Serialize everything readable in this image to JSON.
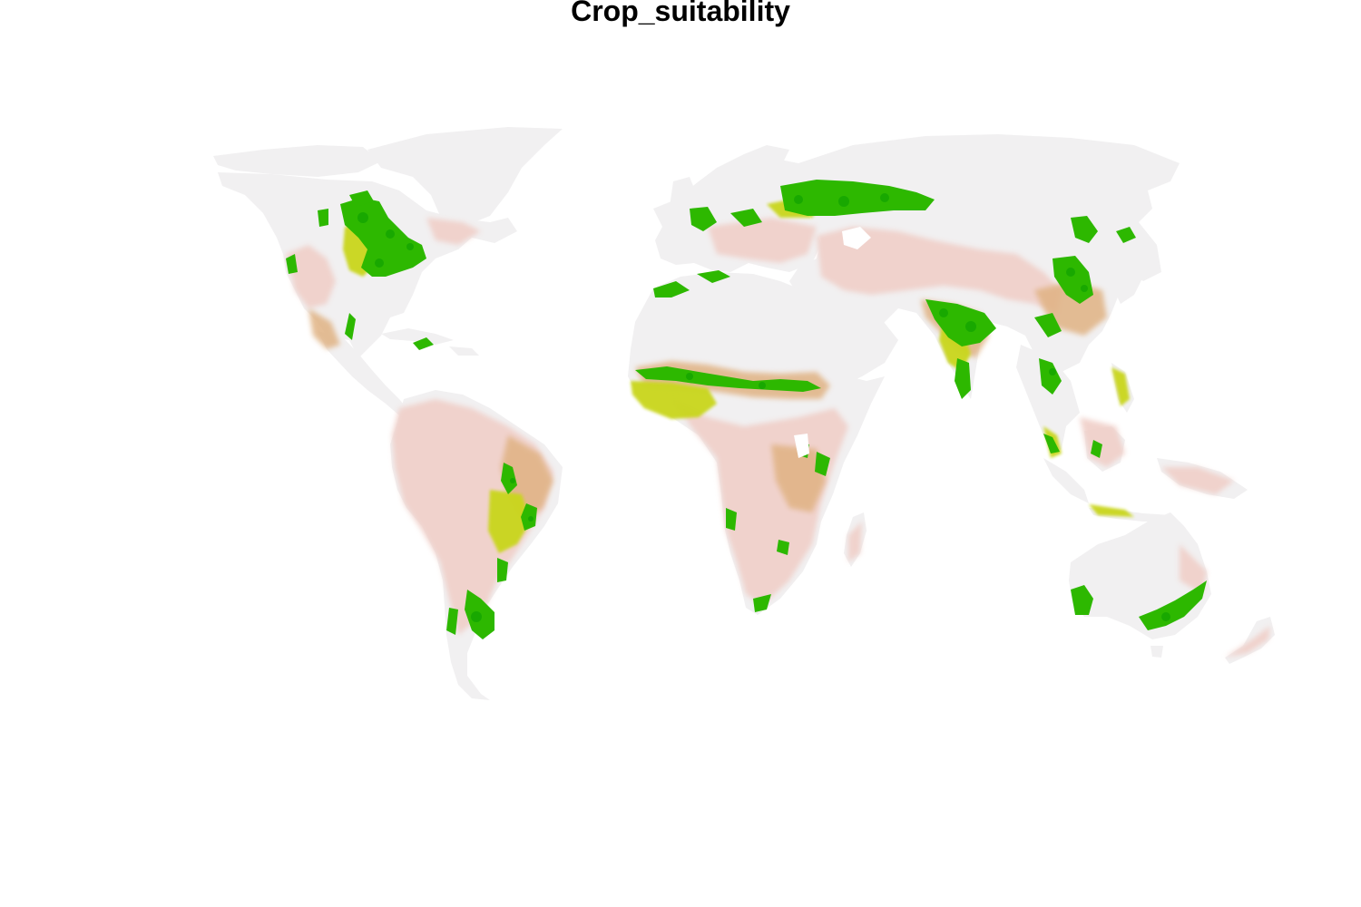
{
  "map": {
    "title": "Crop_suitability",
    "colors": {
      "background": "#ffffff",
      "unsuitable": "#f1f0f1",
      "low": "#f0cfc8",
      "moderate": "#e0b283",
      "high": "#c9d61a",
      "very_high": "#2db800",
      "dense": "#18a800"
    }
  }
}
